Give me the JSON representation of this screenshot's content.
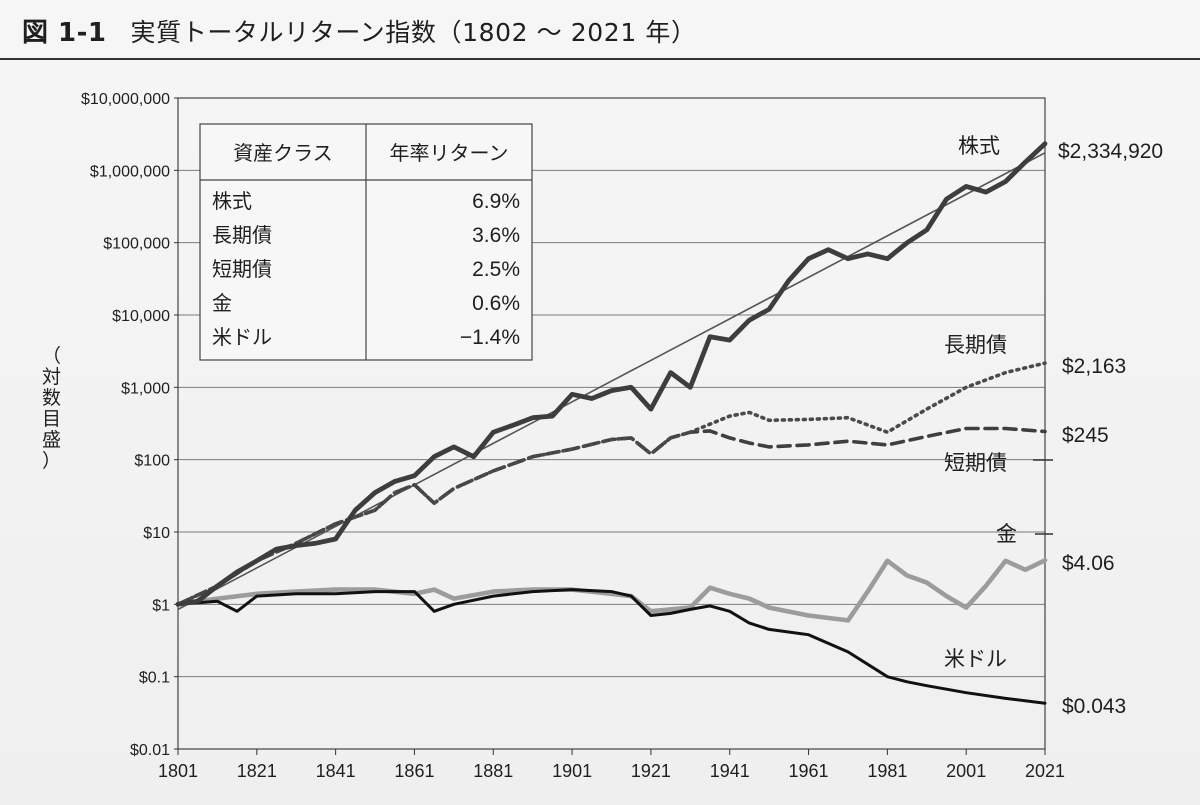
{
  "header": {
    "figure_label": "図 1-1",
    "title": "実質トータルリターン指数（1802 ～ 2021 年）"
  },
  "chart_data": {
    "type": "line",
    "title": "実質トータルリターン指数（1802 ～ 2021 年）",
    "ylabel": "（対数目盛）",
    "xlabel": "",
    "y_scale": "log",
    "ylim": [
      0.01,
      10000000
    ],
    "xlim": [
      1801,
      2021
    ],
    "x_ticks": [
      "1801",
      "1821",
      "1841",
      "1861",
      "1881",
      "1901",
      "1921",
      "1941",
      "1961",
      "1981",
      "2001",
      "2021"
    ],
    "y_ticks": [
      {
        "value": 10000000,
        "label": "$10,000,000"
      },
      {
        "value": 1000000,
        "label": "$1,000,000"
      },
      {
        "value": 100000,
        "label": "$100,000"
      },
      {
        "value": 10000,
        "label": "$10,000"
      },
      {
        "value": 1000,
        "label": "$1,000"
      },
      {
        "value": 100,
        "label": "$100"
      },
      {
        "value": 10,
        "label": "$10"
      },
      {
        "value": 1,
        "label": "$1"
      },
      {
        "value": 0.1,
        "label": "$0.1"
      },
      {
        "value": 0.01,
        "label": "$0.01"
      }
    ],
    "grid": true,
    "legend_table": {
      "headers": [
        "資産クラス",
        "年率リターン"
      ],
      "rows": [
        {
          "asset": "株式",
          "return": "6.9%"
        },
        {
          "asset": "長期債",
          "return": "3.6%"
        },
        {
          "asset": "短期債",
          "return": "2.5%"
        },
        {
          "asset": "金",
          "return": "0.6%"
        },
        {
          "asset": "米ドル",
          "return": "−1.4%"
        }
      ],
      "placement": "top-left"
    },
    "series": [
      {
        "name": "株式",
        "end_label": "$2,334,920",
        "style": "thick-solid",
        "color": "#3d3d3d",
        "x": [
          1801,
          1806,
          1811,
          1816,
          1821,
          1826,
          1831,
          1836,
          1841,
          1846,
          1851,
          1856,
          1861,
          1866,
          1871,
          1876,
          1881,
          1886,
          1891,
          1896,
          1901,
          1906,
          1911,
          1916,
          1921,
          1926,
          1931,
          1936,
          1941,
          1946,
          1951,
          1956,
          1961,
          1966,
          1971,
          1976,
          1981,
          1986,
          1991,
          1996,
          2001,
          2006,
          2011,
          2016,
          2021
        ],
        "values": [
          1.0,
          1.1,
          1.8,
          2.8,
          4.0,
          5.8,
          6.5,
          7.0,
          8.0,
          20,
          35,
          50,
          60,
          110,
          150,
          110,
          240,
          300,
          380,
          400,
          800,
          700,
          900,
          1000,
          500,
          1600,
          1000,
          5000,
          4500,
          8500,
          12000,
          30000,
          60000,
          80000,
          60000,
          70000,
          60000,
          100000,
          150000,
          400000,
          600000,
          500000,
          700000,
          1300000,
          2334920
        ]
      },
      {
        "name": "長期債",
        "end_label": "$2,163",
        "style": "dotted",
        "color": "#4a4a4a",
        "x": [
          1801,
          1811,
          1821,
          1831,
          1841,
          1851,
          1856,
          1861,
          1866,
          1871,
          1881,
          1891,
          1901,
          1911,
          1916,
          1921,
          1926,
          1931,
          1941,
          1946,
          1951,
          1961,
          1971,
          1981,
          1991,
          2001,
          2011,
          2021
        ],
        "values": [
          1.0,
          1.8,
          4.0,
          7.0,
          13,
          20,
          35,
          45,
          25,
          40,
          70,
          110,
          140,
          190,
          200,
          120,
          200,
          240,
          400,
          450,
          350,
          360,
          380,
          240,
          500,
          1000,
          1600,
          2163
        ]
      },
      {
        "name": "短期債",
        "end_label": "$245",
        "style": "dashed",
        "color": "#3f3f3f",
        "x": [
          1801,
          1811,
          1821,
          1831,
          1841,
          1851,
          1856,
          1861,
          1866,
          1871,
          1881,
          1891,
          1901,
          1911,
          1916,
          1921,
          1926,
          1931,
          1936,
          1941,
          1946,
          1951,
          1961,
          1971,
          1981,
          1991,
          2001,
          2011,
          2021
        ],
        "values": [
          1.0,
          1.8,
          4.0,
          7.0,
          13,
          20,
          35,
          45,
          25,
          40,
          70,
          110,
          140,
          190,
          200,
          120,
          200,
          240,
          250,
          200,
          170,
          150,
          160,
          180,
          160,
          210,
          270,
          270,
          245
        ]
      },
      {
        "name": "金",
        "end_label": "$4.06",
        "style": "thick-light",
        "color": "#9c9c9c",
        "x": [
          1801,
          1811,
          1821,
          1831,
          1841,
          1851,
          1861,
          1866,
          1871,
          1881,
          1891,
          1901,
          1911,
          1916,
          1921,
          1931,
          1936,
          1941,
          1946,
          1951,
          1961,
          1971,
          1976,
          1981,
          1986,
          1991,
          1996,
          2001,
          2006,
          2011,
          2016,
          2021
        ],
        "values": [
          1.0,
          1.2,
          1.4,
          1.5,
          1.6,
          1.6,
          1.4,
          1.6,
          1.2,
          1.5,
          1.6,
          1.6,
          1.4,
          1.3,
          0.8,
          0.9,
          1.7,
          1.4,
          1.2,
          0.9,
          0.7,
          0.6,
          1.5,
          4.0,
          2.5,
          2.0,
          1.3,
          0.9,
          1.8,
          4.0,
          3.0,
          4.06
        ]
      },
      {
        "name": "米ドル",
        "end_label": "$0.043",
        "style": "solid",
        "color": "#111111",
        "x": [
          1801,
          1811,
          1816,
          1821,
          1831,
          1841,
          1851,
          1861,
          1866,
          1871,
          1881,
          1891,
          1901,
          1911,
          1916,
          1921,
          1926,
          1931,
          1936,
          1941,
          1946,
          1951,
          1961,
          1971,
          1981,
          1986,
          1991,
          2001,
          2011,
          2021
        ],
        "values": [
          1.0,
          1.1,
          0.8,
          1.3,
          1.4,
          1.4,
          1.5,
          1.5,
          0.8,
          1.0,
          1.3,
          1.5,
          1.6,
          1.5,
          1.3,
          0.7,
          0.75,
          0.85,
          0.95,
          0.8,
          0.55,
          0.45,
          0.38,
          0.22,
          0.1,
          0.085,
          0.075,
          0.06,
          0.05,
          0.043
        ]
      }
    ],
    "trend_line": {
      "style": "thin-solid",
      "color": "#555555",
      "x": [
        1801,
        2021
      ],
      "values": [
        0.85,
        1750000
      ]
    },
    "series_label_positions": {
      "株式": "right",
      "長期債": "right",
      "短期債": "right",
      "金": "right",
      "米ドル": "right"
    }
  }
}
